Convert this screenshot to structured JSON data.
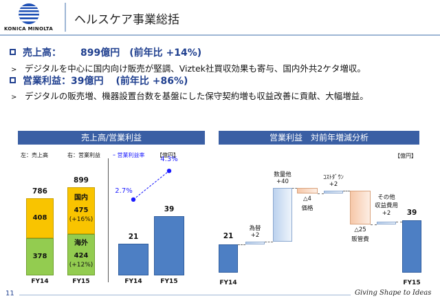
{
  "header": {
    "title": "ヘルスケア事業総括",
    "logo_text": "KONICA MINOLTA"
  },
  "summary": {
    "line1_label": "売上高：",
    "line1_value": "899億円",
    "line1_change": "(前年比 +14%)",
    "line2": "デジタルを中心に国内向け販売が堅調、Viztek社買収効果も寄与、国内外共2ケタ増収。",
    "line3_label": "営業利益：",
    "line3_value": "39億円",
    "line3_change": "(前年比 +86%)",
    "line4": "デジタルの販売増、機器設置台数を基盤にした保守契約増も収益改善に貢献、大幅増益。"
  },
  "left_panel": {
    "title": "売上高/営業利益",
    "legend_left": "左：売上高",
    "legend_right": "右：営業利益",
    "legend_rate": "ｰ 営業利益率",
    "unit": "【億円】"
  },
  "right_panel": {
    "title": "営業利益　対前年増減分析",
    "unit": "【億円】"
  },
  "colors": {
    "blue": "#4d7fc4",
    "yellow": "#f9c400",
    "green": "#93cc50",
    "header_bar": "#3a5fa4",
    "rate": "#1a1aff"
  },
  "chart_data": [
    {
      "type": "bar",
      "categories": [
        "FY14",
        "FY15"
      ],
      "series": [
        {
          "name": "国内",
          "values": [
            408,
            475
          ]
        },
        {
          "name": "海外",
          "values": [
            378,
            424
          ]
        }
      ],
      "totals": [
        786,
        899
      ],
      "labels": {
        "domestic": "国内",
        "overseas": "海外",
        "dom_growth": "(+16%)",
        "ovs_growth": "(+12%)"
      }
    },
    {
      "type": "bar",
      "categories": [
        "FY14",
        "FY15"
      ],
      "values": [
        21,
        39
      ],
      "rate": {
        "values": [
          2.7,
          4.3
        ],
        "labels": [
          "2.7%",
          "4.3%"
        ]
      }
    },
    {
      "type": "bar",
      "categories": [
        "FY14",
        "為替",
        "数量他",
        "価格",
        "ｺｽﾄﾀﾞｳﾝ",
        "販管費",
        "その他収益費用",
        "FY15"
      ],
      "values": [
        21,
        2,
        40,
        -4,
        2,
        -25,
        2,
        39
      ],
      "labels": {
        "start": "21",
        "end": "39",
        "fx_name": "為替",
        "fx_val": "+2",
        "vol_name": "数量他",
        "vol_val": "+40",
        "price_name": "価格",
        "price_val": "△4",
        "cost_name": "ｺｽﾄﾀﾞｳﾝ",
        "cost_val": "+2",
        "sga_name": "販管費",
        "sga_val": "△25",
        "other_name1": "その他",
        "other_name2": "収益費用",
        "other_val": "+2",
        "x_start": "FY14",
        "x_end": "FY15"
      }
    }
  ],
  "footer": {
    "page": "11",
    "tagline": "Giving Shape to Ideas"
  }
}
